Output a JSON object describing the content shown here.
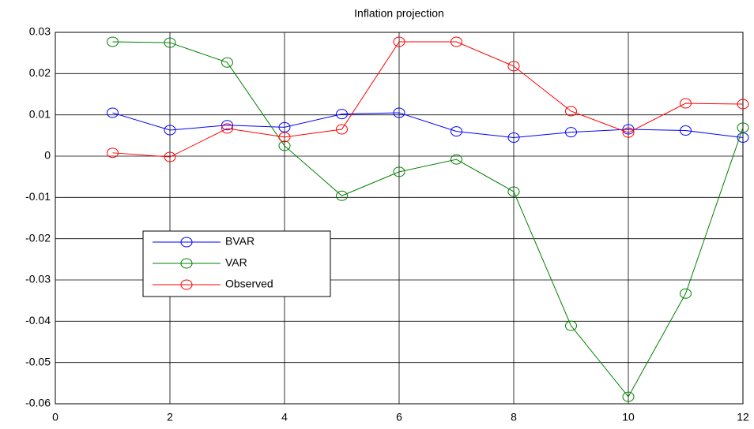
{
  "chart_data": {
    "type": "line",
    "title": "Inflation projection",
    "x": [
      1,
      2,
      3,
      4,
      5,
      6,
      7,
      8,
      9,
      10,
      11,
      12
    ],
    "series": [
      {
        "name": "BVAR",
        "color": "#0000ff",
        "values": [
          0.0105,
          0.0063,
          0.0075,
          0.007,
          0.0102,
          0.0105,
          0.006,
          0.0045,
          0.0058,
          0.0065,
          0.0062,
          0.0045
        ]
      },
      {
        "name": "VAR",
        "color": "#008000",
        "values": [
          0.0277,
          0.0275,
          0.0227,
          0.0025,
          -0.0096,
          -0.0038,
          -0.0008,
          -0.0086,
          -0.0411,
          -0.0583,
          -0.0333,
          0.0069
        ]
      },
      {
        "name": "Observed",
        "color": "#ff0000",
        "values": [
          0.0008,
          -0.0002,
          0.0067,
          0.0046,
          0.0065,
          0.0277,
          0.0277,
          0.0218,
          0.0109,
          0.0057,
          0.0128,
          0.0126
        ]
      }
    ],
    "xlim": [
      0,
      12
    ],
    "xticks": [
      0,
      2,
      4,
      6,
      8,
      10,
      12
    ],
    "ylim": [
      -0.06,
      0.03
    ],
    "yticks": [
      -0.06,
      -0.05,
      -0.04,
      -0.03,
      -0.02,
      -0.01,
      0,
      0.01,
      0.02,
      0.03
    ],
    "grid": true,
    "legend": "center-left",
    "marker": "circle"
  }
}
